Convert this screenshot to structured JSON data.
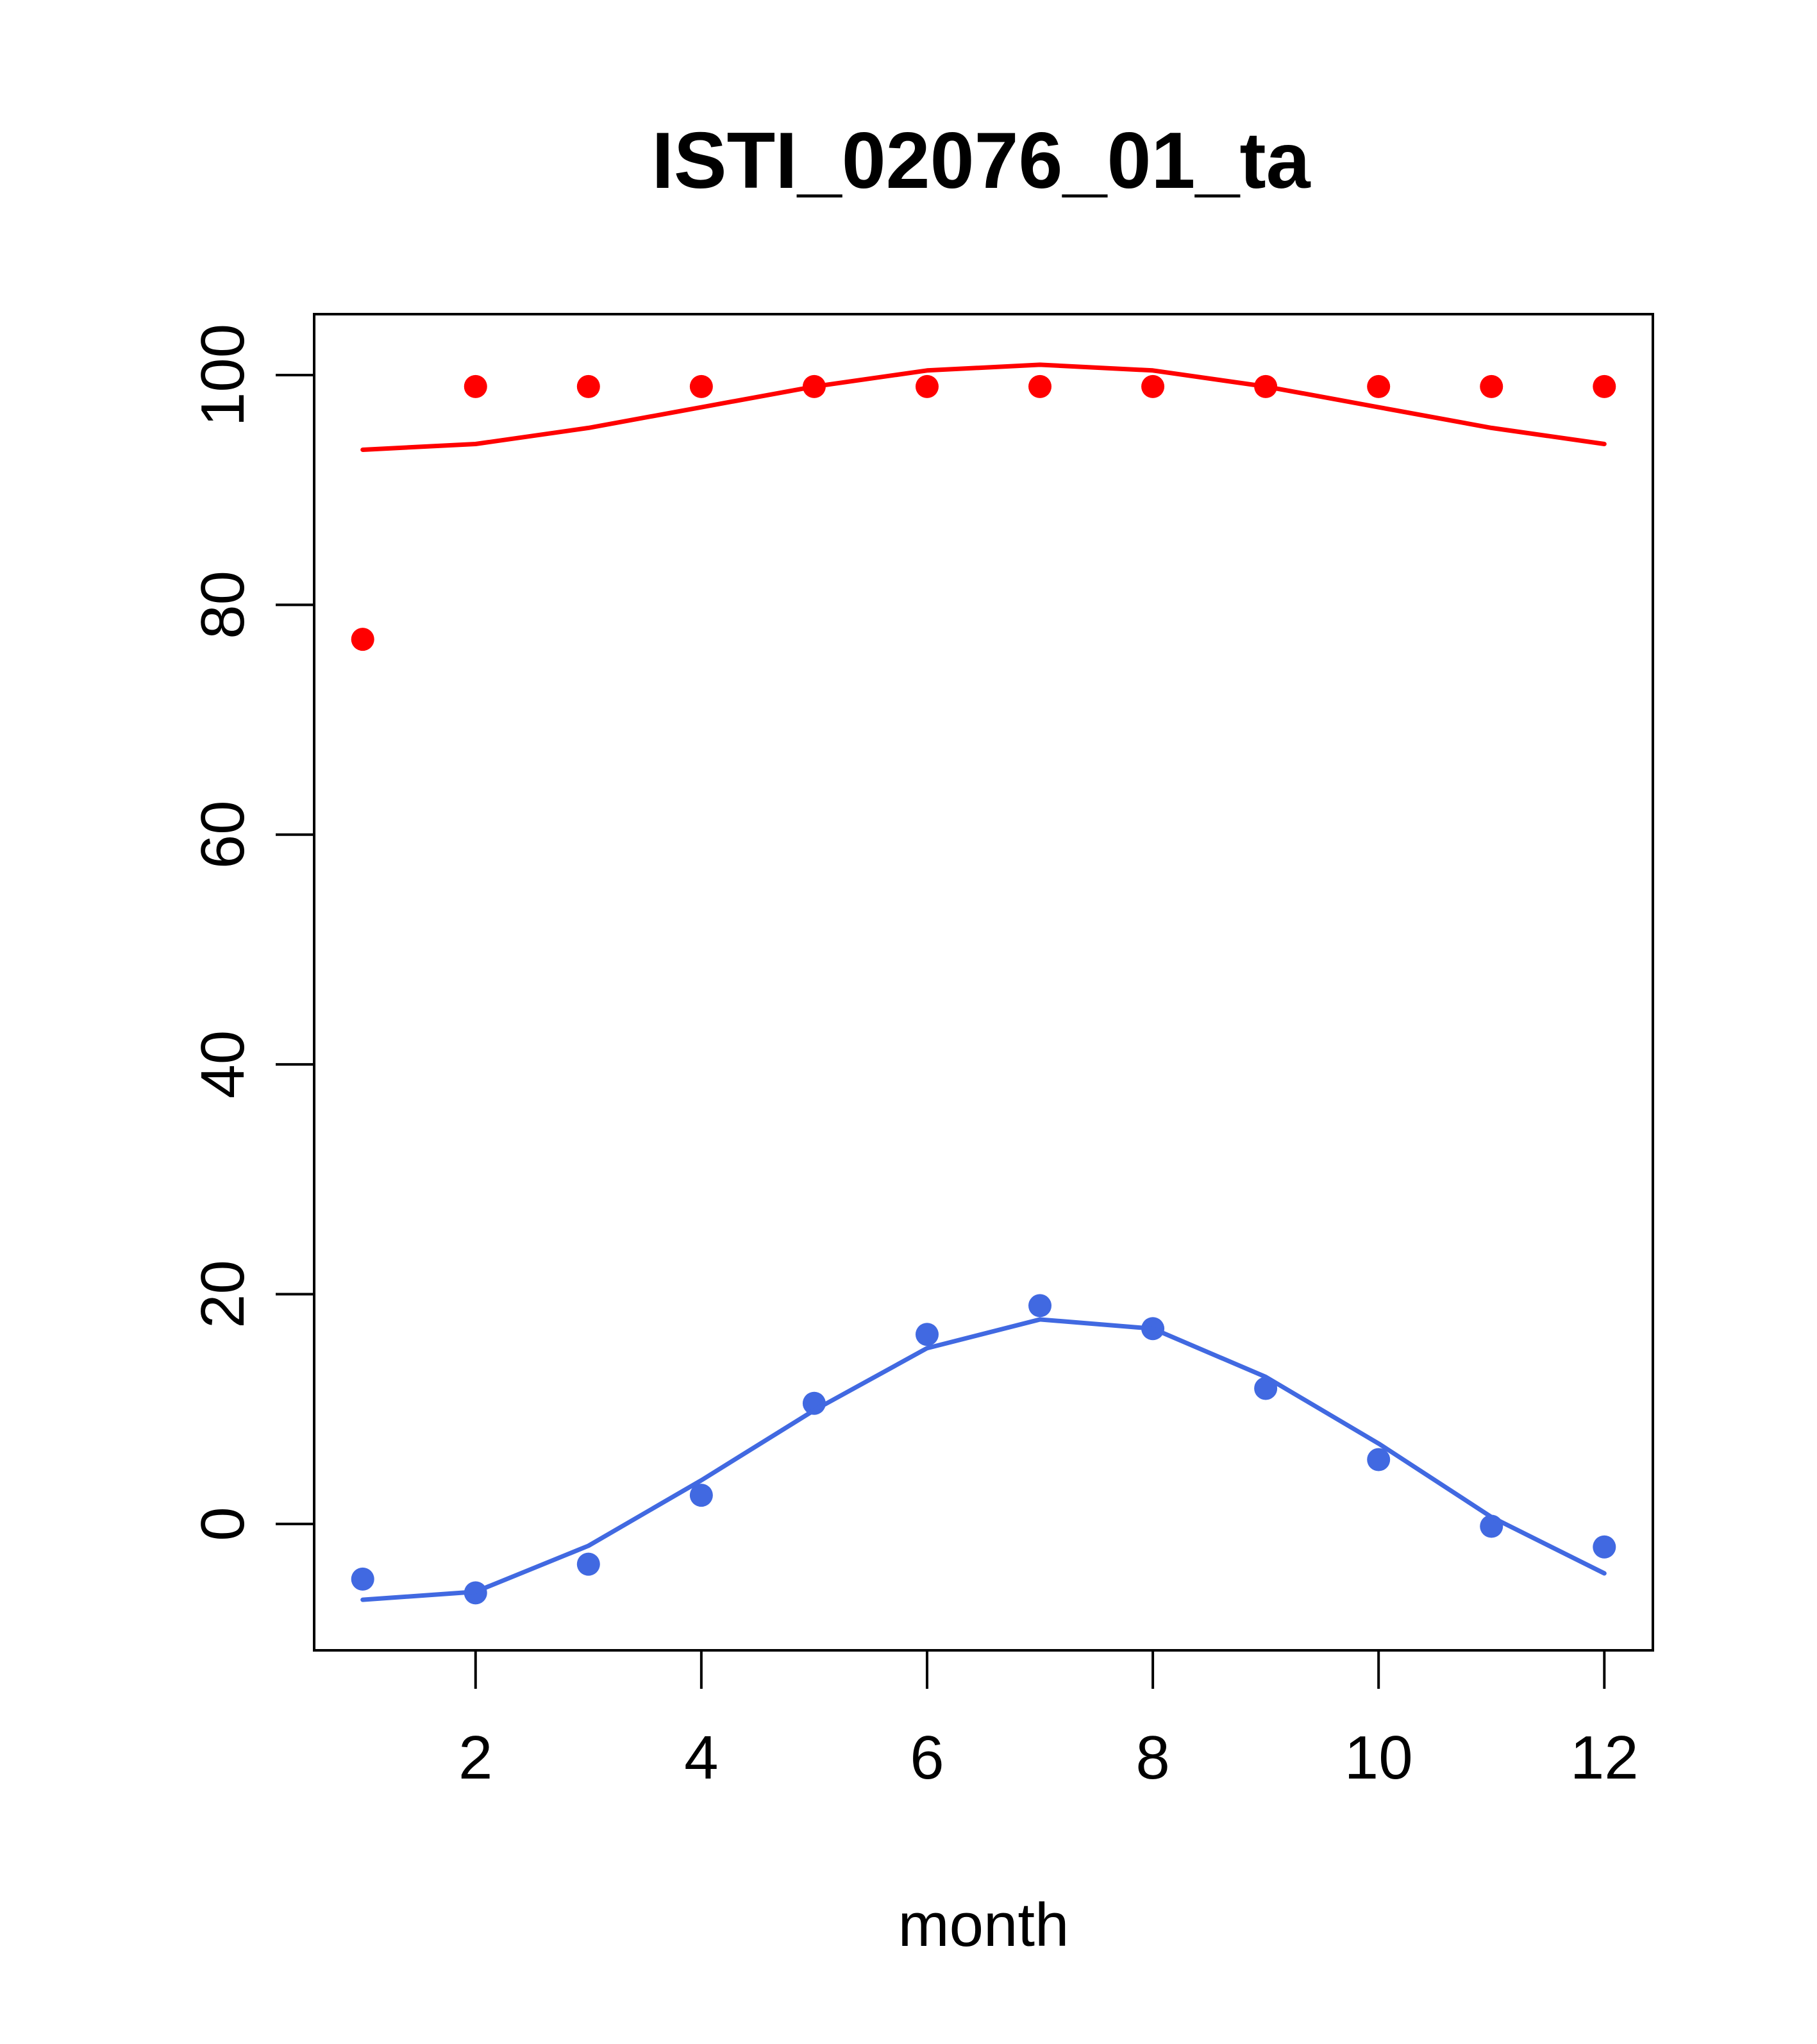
{
  "chart_data": {
    "type": "line",
    "title": "ISTI_02076_01_ta",
    "xlabel": "month",
    "ylabel": "",
    "xlim": [
      0.57,
      12.43
    ],
    "ylim": [
      -11,
      105.3
    ],
    "x_ticks": [
      2,
      4,
      6,
      8,
      10,
      12
    ],
    "y_ticks": [
      0,
      20,
      40,
      60,
      80,
      100
    ],
    "grid": false,
    "x": [
      1,
      2,
      3,
      4,
      5,
      6,
      7,
      8,
      9,
      10,
      11,
      12
    ],
    "series": [
      {
        "name": "upper-points",
        "kind": "points",
        "color": "#ff0000",
        "values": [
          77,
          99,
          99,
          99,
          99,
          99,
          99,
          99,
          99,
          99,
          99,
          99
        ]
      },
      {
        "name": "upper-line",
        "kind": "line",
        "color": "#ff0000",
        "values": [
          93.5,
          94,
          95.4,
          97.2,
          99,
          100.4,
          100.9,
          100.4,
          99,
          97.2,
          95.4,
          94
        ]
      },
      {
        "name": "lower-points",
        "kind": "points",
        "color": "#4169e1",
        "values": [
          -4.8,
          -6,
          -3.5,
          2.5,
          10.5,
          16.5,
          19,
          17,
          11.8,
          5.6,
          -0.2,
          -2
        ]
      },
      {
        "name": "lower-line",
        "kind": "line",
        "color": "#4169e1",
        "values": [
          -6.6,
          -5.9,
          -1.9,
          3.8,
          9.9,
          15.3,
          17.8,
          17,
          12.8,
          7,
          0.6,
          -4.3
        ]
      }
    ]
  }
}
